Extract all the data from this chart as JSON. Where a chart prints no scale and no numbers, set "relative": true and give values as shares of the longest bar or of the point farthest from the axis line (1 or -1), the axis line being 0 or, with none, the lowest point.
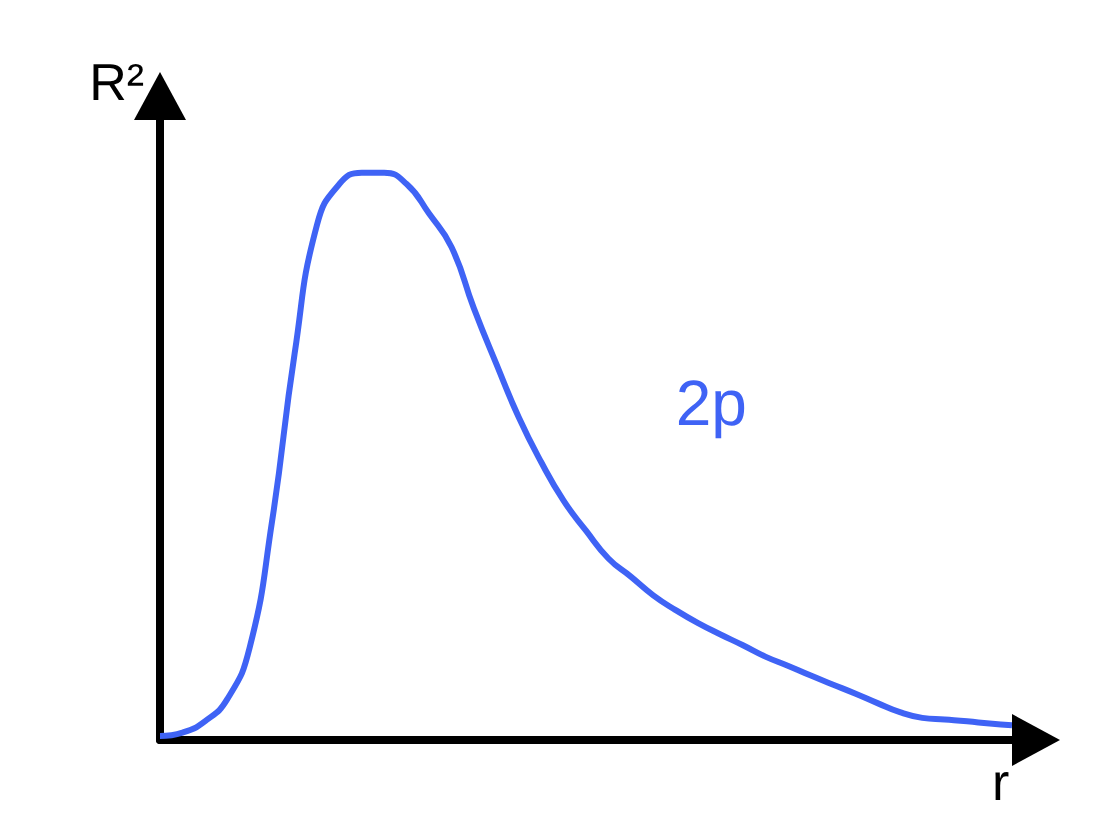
{
  "chart_data": {
    "type": "line",
    "xlabel": "r",
    "ylabel": "R²",
    "relative": true,
    "marker": "none",
    "categories": [
      null,
      null,
      null,
      null,
      null,
      null,
      null,
      null,
      null,
      null,
      null,
      null,
      null,
      null,
      null,
      null,
      null,
      null,
      null,
      null,
      null,
      null,
      null,
      null,
      null,
      null,
      null,
      null,
      null,
      null,
      null,
      null,
      null,
      null,
      null,
      null,
      null,
      null,
      null
    ],
    "series": [
      {
        "name": "2p",
        "color": "#3f63f5",
        "values": [
          0.007,
          0.013,
          0.033,
          0.072,
          0.163,
          0.386,
          0.68,
          0.908,
          0.98,
          1.0,
          1.0,
          0.98,
          0.928,
          0.869,
          0.761,
          0.663,
          0.569,
          0.49,
          0.422,
          0.369,
          0.32,
          0.288,
          0.255,
          0.229,
          0.206,
          0.186,
          0.167,
          0.147,
          0.131,
          0.114,
          0.098,
          0.082,
          0.065,
          0.049,
          0.039,
          0.036,
          0.033,
          0.029,
          0.026
        ]
      }
    ]
  }
}
